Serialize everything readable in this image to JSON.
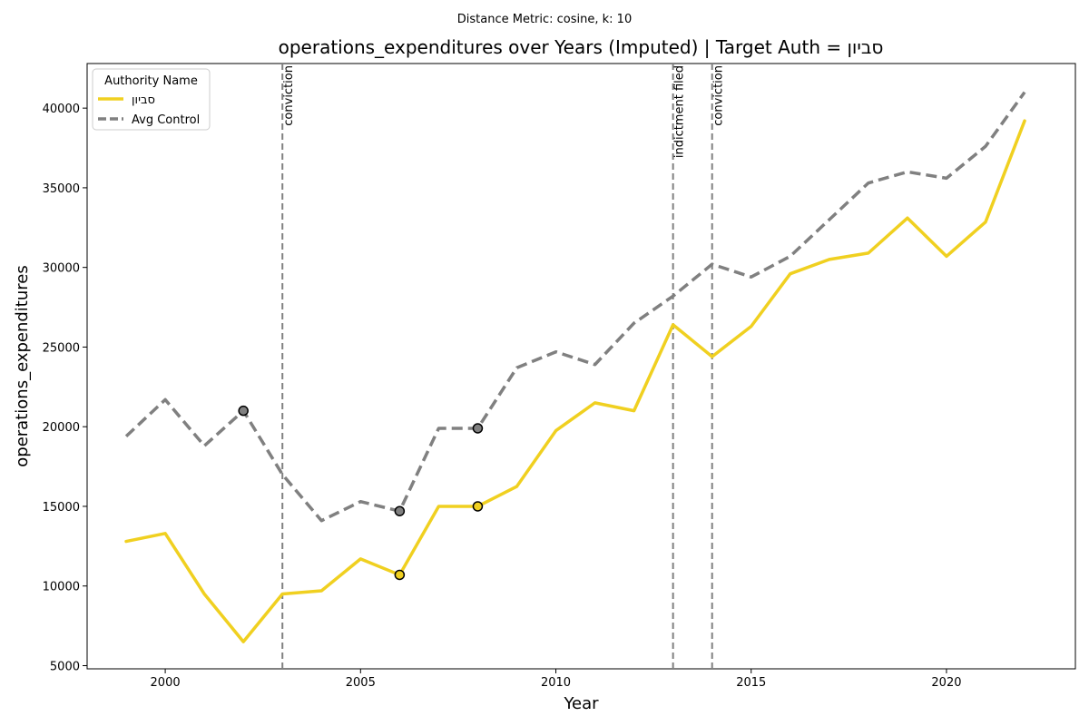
{
  "chart_data": {
    "type": "line",
    "suptitle": "Distance Metric: cosine, k: 10",
    "title": "operations_expenditures over Years (Imputed) | Target Auth = סביון",
    "xlabel": "Year",
    "ylabel": "operations_expenditures",
    "xlim": [
      1998,
      2023.3
    ],
    "ylim": [
      4800,
      42800
    ],
    "xticks": [
      2000,
      2005,
      2010,
      2015,
      2020
    ],
    "yticks": [
      5000,
      10000,
      15000,
      20000,
      25000,
      30000,
      35000,
      40000
    ],
    "legend": {
      "title": "Authority Name",
      "placement": "upper-left"
    },
    "x": [
      1999,
      2000,
      2001,
      2002,
      2003,
      2004,
      2005,
      2006,
      2007,
      2008,
      2009,
      2010,
      2011,
      2012,
      2013,
      2014,
      2015,
      2016,
      2017,
      2018,
      2019,
      2020,
      2021,
      2022
    ],
    "series": [
      {
        "name": "סביון",
        "color": "#f0d020",
        "style": "solid",
        "values": [
          12800,
          13300,
          9500,
          6500,
          9500,
          9700,
          11700,
          10700,
          15000,
          15000,
          16250,
          19750,
          21500,
          21000,
          26400,
          24400,
          26300,
          29600,
          30500,
          30900,
          33100,
          30700,
          32850,
          39200
        ],
        "imputed_markers": [
          {
            "x": 2006,
            "y": 10700
          },
          {
            "x": 2008,
            "y": 15000
          }
        ]
      },
      {
        "name": "Avg Control",
        "color": "#808080",
        "style": "dashed",
        "values": [
          19400,
          21700,
          18800,
          21000,
          17000,
          14100,
          15300,
          14700,
          19900,
          19900,
          23700,
          24700,
          23900,
          26500,
          28200,
          30200,
          29400,
          30700,
          33000,
          35300,
          36000,
          35600,
          37600,
          41000
        ],
        "imputed_markers": [
          {
            "x": 2002,
            "y": 21000
          },
          {
            "x": 2006,
            "y": 14700
          },
          {
            "x": 2008,
            "y": 19900
          }
        ]
      }
    ],
    "events": [
      {
        "x": 2003,
        "label": "conviction"
      },
      {
        "x": 2013,
        "label": "indictment filed"
      },
      {
        "x": 2014,
        "label": "conviction"
      }
    ]
  }
}
